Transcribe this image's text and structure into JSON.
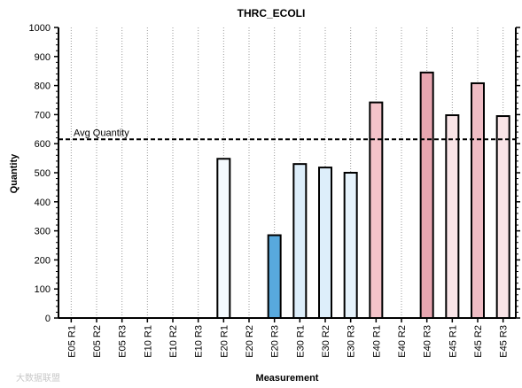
{
  "chart_data": {
    "type": "bar",
    "title": "THRC_ECOLI",
    "xlabel": "Measurement",
    "ylabel": "Quantity",
    "ylim": [
      0,
      1000
    ],
    "yticks": [
      0,
      100,
      200,
      300,
      400,
      500,
      600,
      700,
      800,
      900,
      1000
    ],
    "categories": [
      "E05 R1",
      "E05 R2",
      "E05 R3",
      "E10 R1",
      "E10 R2",
      "E10 R3",
      "E20 R1",
      "E20 R2",
      "E20 R3",
      "E30 R1",
      "E30 R2",
      "E30 R3",
      "E40 R1",
      "E40 R2",
      "E40 R3",
      "E45 R1",
      "E45 R2",
      "E45 R3"
    ],
    "values": [
      null,
      null,
      null,
      null,
      null,
      null,
      548,
      null,
      285,
      530,
      518,
      500,
      742,
      null,
      845,
      698,
      808,
      695
    ],
    "bar_colors": [
      "#ffffff",
      "#ffffff",
      "#ffffff",
      "#ffffff",
      "#ffffff",
      "#ffffff",
      "#f5fbff",
      "#ffffff",
      "#58a9dd",
      "#ddeefa",
      "#ddeefa",
      "#e6f3fc",
      "#f4c3c9",
      "#ffffff",
      "#e8a6b0",
      "#f9e4e7",
      "#efbcc4",
      "#f9e4e7"
    ],
    "reference_line": {
      "label": "Avg Quantity",
      "value": 615,
      "style": "dashed"
    },
    "grid": "vertical-dotted"
  },
  "watermark": "大数据联盟"
}
